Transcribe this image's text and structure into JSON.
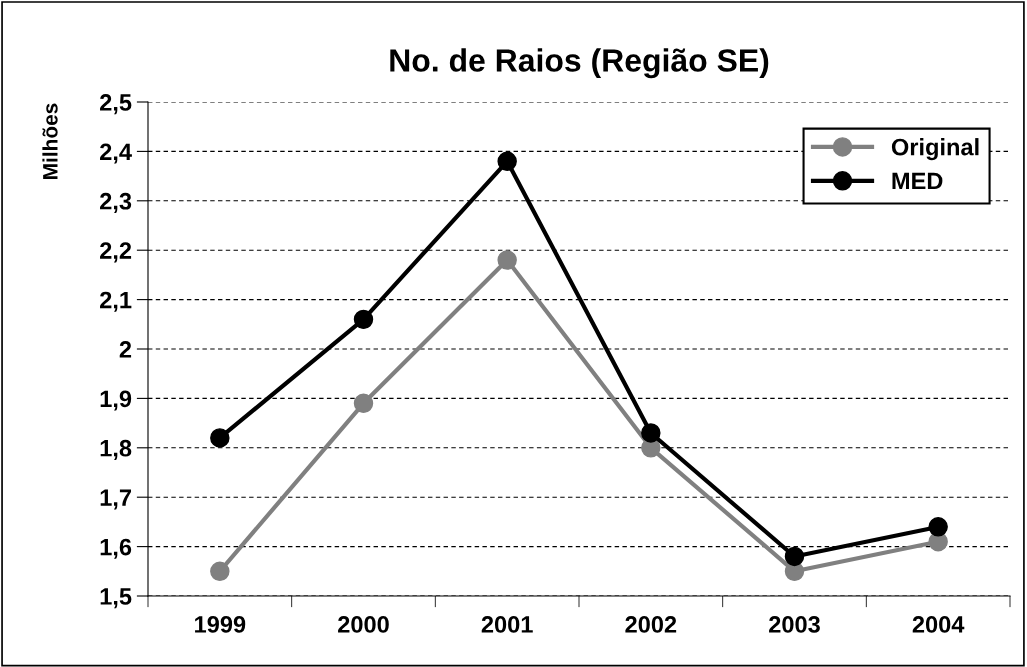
{
  "chart_data": {
    "type": "line",
    "title": "No. de Raios (Região SE)",
    "ylabel": "Milhões",
    "categories": [
      "1999",
      "2000",
      "2001",
      "2002",
      "2003",
      "2004"
    ],
    "series": [
      {
        "name": "Original",
        "color": "#808080",
        "values": [
          1.55,
          1.89,
          2.18,
          1.8,
          1.55,
          1.61
        ]
      },
      {
        "name": "MED",
        "color": "#000000",
        "values": [
          1.82,
          2.06,
          2.38,
          1.83,
          1.58,
          1.64
        ]
      }
    ],
    "ylim": [
      1.5,
      2.5
    ],
    "yticks": [
      {
        "value": 1.5,
        "label": "1,5"
      },
      {
        "value": 1.6,
        "label": "1,6"
      },
      {
        "value": 1.7,
        "label": "1,7"
      },
      {
        "value": 1.8,
        "label": "1,8"
      },
      {
        "value": 1.9,
        "label": "1,9"
      },
      {
        "value": 2,
        "label": "2"
      },
      {
        "value": 2.1,
        "label": "2,1"
      },
      {
        "value": 2.2,
        "label": "2,2"
      },
      {
        "value": 2.3,
        "label": "2,3"
      },
      {
        "value": 2.4,
        "label": "2,4"
      },
      {
        "value": 2.5,
        "label": "2,5"
      }
    ],
    "grid": "y",
    "legend": "top right",
    "marker": "circle",
    "line_style": "solid"
  }
}
